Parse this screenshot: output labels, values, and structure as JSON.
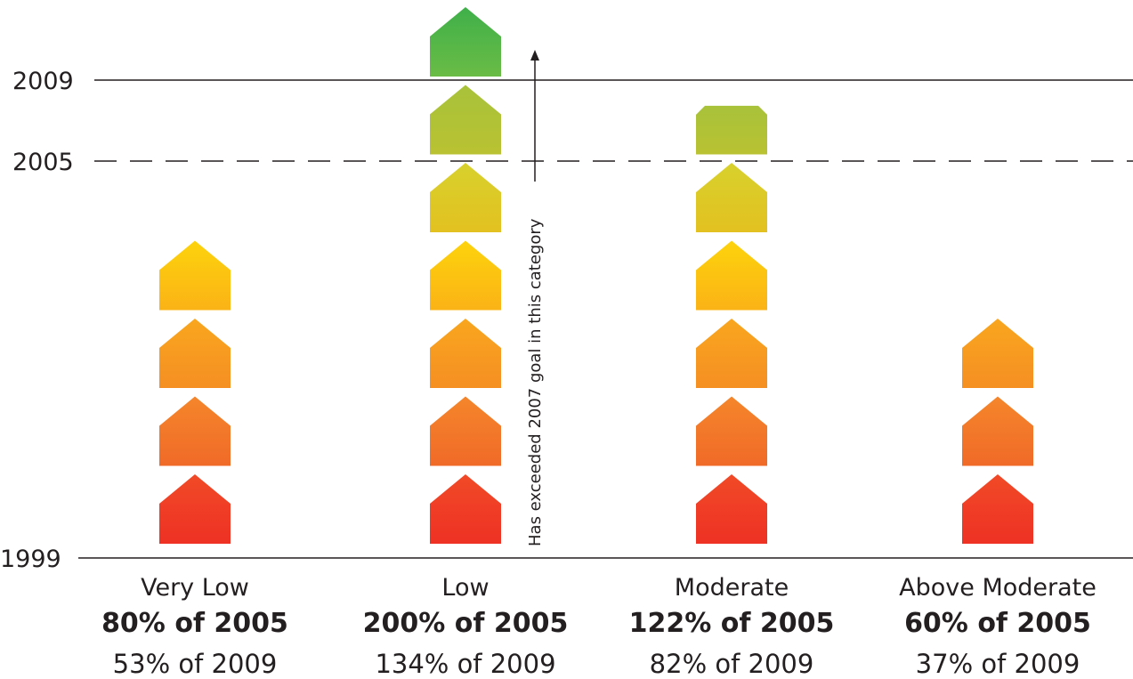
{
  "chart_data": {
    "type": "bar",
    "y_axis": {
      "ticks": [
        {
          "value": 1999,
          "label": "1999",
          "line": "solid"
        },
        {
          "value": 2005,
          "label": "2005",
          "line": "dashed"
        },
        {
          "value": 2009,
          "label": "2009",
          "line": "solid"
        }
      ]
    },
    "categories": [
      {
        "name": "Very Low",
        "pct_2005": "80% of 2005",
        "pct_2009": "53% of 2009",
        "houses": 4
      },
      {
        "name": "Low",
        "pct_2005": "200% of 2005",
        "pct_2009": "134% of 2009",
        "houses": 7
      },
      {
        "name": "Moderate",
        "pct_2005": "122% of 2005",
        "pct_2009": "82% of 2009",
        "houses": 5.7
      },
      {
        "name": "Above Moderate",
        "pct_2005": "60% of 2005",
        "pct_2009": "37% of 2009",
        "houses": 3
      }
    ],
    "annotation": {
      "text": "Has exceeded 2007 goal in this category",
      "category": "Low"
    },
    "house_colors": [
      [
        "#ee3124",
        "#f14a27"
      ],
      [
        "#f06a28",
        "#f5862b"
      ],
      [
        "#f58f23",
        "#f9a61e"
      ],
      [
        "#fbb316",
        "#fdd30c"
      ],
      [
        "#e2c120",
        "#d8d12d"
      ],
      [
        "#b9c232",
        "#a8c23a"
      ],
      [
        "#6abc45",
        "#3fb04a"
      ]
    ]
  }
}
